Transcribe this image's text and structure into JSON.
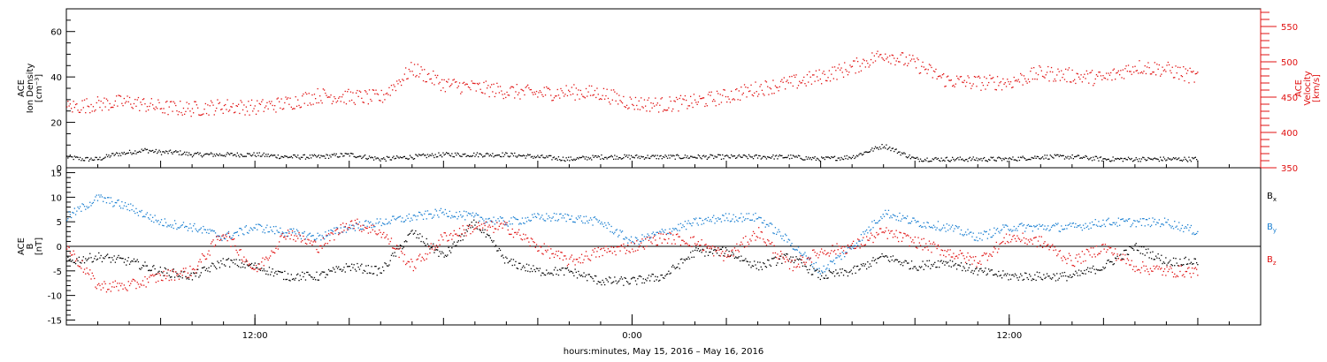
{
  "colors": {
    "black": "#000000",
    "red": "#e01010",
    "blue": "#1a7fd1"
  },
  "chart_data": [
    {
      "type": "scatter",
      "panel": "plasma",
      "time_range": [
        "2016-05-15 06:00",
        "2016-05-16 20:00"
      ],
      "x_tick_labels": [
        "12:00",
        "0:00",
        "12:00"
      ],
      "x_tick_times": [
        "2016-05-15 12:00",
        "2016-05-16 00:00",
        "2016-05-16 12:00"
      ],
      "ylabel_lines": [
        "ACE",
        "Ion Density",
        "[cm⁻³]"
      ],
      "y_ticks": [
        0,
        20,
        40,
        60
      ],
      "ylim": [
        0,
        70
      ],
      "y2label_lines": [
        "ACE",
        "Velocity",
        "[km/s]"
      ],
      "y2_ticks": [
        350,
        400,
        450,
        500,
        550
      ],
      "y2lim": [
        350,
        575
      ],
      "series": [
        {
          "axis": "left",
          "color": "black",
          "x_hours": [
            0,
            0.5,
            1,
            1.5,
            2,
            2.5,
            3,
            3.5,
            4,
            5,
            6,
            7,
            8,
            9,
            10,
            11,
            12,
            13,
            14,
            15,
            16,
            17,
            18,
            19,
            19.5,
            20,
            21,
            22,
            23,
            24,
            25,
            26,
            27,
            28,
            29,
            30,
            31,
            32,
            33,
            34,
            35,
            36
          ],
          "values": [
            5,
            4,
            4,
            6,
            7,
            8,
            7,
            7,
            6,
            6,
            6,
            5,
            5,
            6,
            4,
            5,
            6,
            6,
            6,
            5,
            4,
            5,
            5,
            5,
            5,
            5,
            5,
            5,
            5,
            4,
            5,
            10,
            4,
            4,
            4,
            4,
            5,
            5,
            4,
            4,
            4,
            4
          ]
        },
        {
          "axis": "right",
          "color": "red",
          "x_hours": [
            0,
            1,
            2,
            3,
            4,
            5,
            6,
            7,
            8,
            9,
            10,
            11,
            12,
            13,
            14,
            15,
            16,
            17,
            18,
            19,
            20,
            21,
            22,
            23,
            24,
            25,
            26,
            27,
            28,
            29,
            30,
            31,
            32,
            33,
            34,
            35,
            36
          ],
          "values": [
            436,
            441,
            444,
            436,
            434,
            438,
            436,
            442,
            453,
            451,
            450,
            491,
            469,
            464,
            459,
            456,
            458,
            456,
            442,
            440,
            444,
            452,
            463,
            470,
            480,
            493,
            512,
            498,
            474,
            471,
            472,
            485,
            481,
            477,
            494,
            490,
            478
          ]
        }
      ]
    },
    {
      "type": "scatter",
      "panel": "magnetic-field",
      "ylabel_lines": [
        "ACE",
        "B",
        "[nT]"
      ],
      "y_ticks": [
        -15,
        -10,
        -5,
        0,
        5,
        10,
        15
      ],
      "ylim": [
        -16,
        16
      ],
      "xlabel": "hours:minutes, May 15, 2016 – May 16, 2016",
      "zero_line": true,
      "series": [
        {
          "name": "B",
          "subscript": "x",
          "color": "black",
          "x_hours": [
            0,
            1,
            2,
            3,
            4,
            5,
            6,
            7,
            8,
            9,
            10,
            11,
            12,
            13,
            14,
            15,
            16,
            17,
            18,
            19,
            20,
            21,
            22,
            23,
            24,
            25,
            26,
            27,
            28,
            29,
            30,
            31,
            32,
            33,
            34,
            35,
            36
          ],
          "values": [
            -3,
            -2,
            -3,
            -5,
            -6,
            -3,
            -4,
            -6,
            -6,
            -4,
            -5,
            3,
            -2,
            5,
            -3,
            -5,
            -5,
            -7,
            -7,
            -6,
            -1,
            -1,
            -4,
            -2,
            -6,
            -5,
            -2,
            -4,
            -3,
            -5,
            -6,
            -6,
            -6,
            -4,
            0,
            -3,
            -3
          ]
        },
        {
          "name": "B",
          "subscript": "y",
          "color": "blue",
          "x_hours": [
            0,
            1,
            2,
            3,
            4,
            5,
            6,
            7,
            8,
            9,
            10,
            11,
            12,
            13,
            14,
            15,
            16,
            17,
            18,
            19,
            20,
            21,
            22,
            23,
            24,
            25,
            26,
            27,
            28,
            29,
            30,
            31,
            32,
            33,
            34,
            35,
            36
          ],
          "values": [
            6,
            10,
            8,
            5,
            4,
            2,
            4,
            3,
            2,
            4,
            5,
            6,
            7,
            6,
            5,
            6,
            6,
            5,
            1,
            3,
            5,
            6,
            6,
            1,
            -5,
            0,
            7,
            5,
            4,
            2,
            4,
            4,
            4,
            5,
            5,
            5,
            3
          ]
        },
        {
          "name": "B",
          "subscript": "z",
          "color": "red",
          "x_hours": [
            0,
            1,
            2,
            3,
            4,
            5,
            6,
            7,
            8,
            9,
            10,
            11,
            12,
            13,
            14,
            15,
            16,
            17,
            18,
            19,
            20,
            21,
            22,
            23,
            24,
            25,
            26,
            27,
            28,
            29,
            30,
            31,
            32,
            33,
            34,
            35,
            36
          ],
          "values": [
            0,
            -8,
            -8,
            -6,
            -5,
            3,
            -5,
            3,
            0,
            5,
            3,
            -4,
            2,
            4,
            4,
            0,
            -3,
            -1,
            0,
            2,
            1,
            -2,
            3,
            -4,
            -1,
            0,
            3,
            1,
            -1,
            -3,
            2,
            1,
            -3,
            0,
            -4,
            -5,
            -5
          ]
        }
      ]
    }
  ]
}
